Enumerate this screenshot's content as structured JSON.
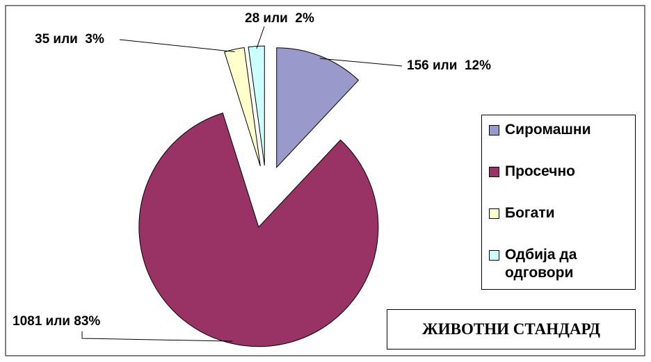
{
  "chart_data": {
    "type": "pie",
    "title": "ЖИВОТНИ СТАНДАРД",
    "categories": [
      "Сиромашни",
      "Просечно",
      "Богати",
      "Одбија да одговори"
    ],
    "values": [
      156,
      1081,
      35,
      28
    ],
    "value_labels": [
      "156 или  12%",
      "1081 или 83%",
      "35 или  3%",
      "28 или  2%"
    ],
    "colors": [
      "#9999cc",
      "#993366",
      "#ffffcc",
      "#ccffff"
    ],
    "legend": "right"
  }
}
